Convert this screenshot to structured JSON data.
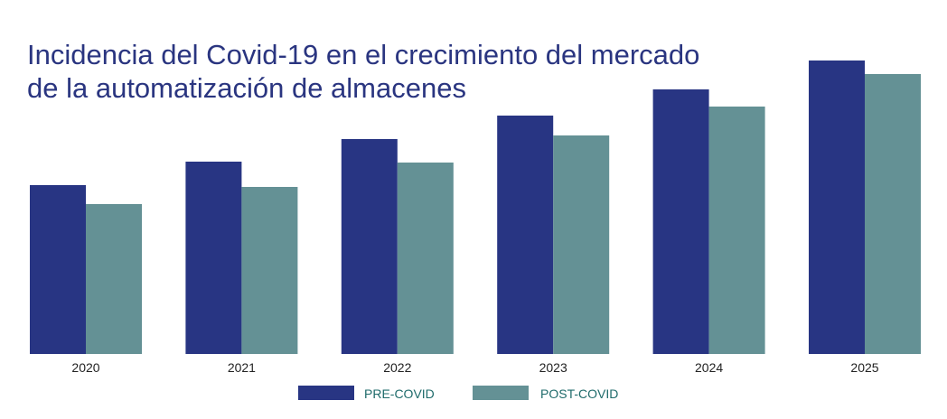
{
  "title_lines": [
    "Incidencia del Covid-19 en el crecimiento del mercado",
    "de la automatización de almacenes"
  ],
  "colors": {
    "pre_covid": "#283583",
    "post_covid": "#649195",
    "title": "#2a3580",
    "legend_text": "#1f6b6b"
  },
  "chart_data": {
    "type": "bar",
    "categories": [
      "2020",
      "2021",
      "2022",
      "2023",
      "2024",
      "2025"
    ],
    "series": [
      {
        "name": "PRE-COVID",
        "values": [
          187,
          213,
          238,
          264,
          293,
          325
        ]
      },
      {
        "name": "POST-COVID",
        "values": [
          166,
          185,
          212,
          242,
          274,
          310
        ]
      }
    ],
    "ylim": [
      0,
      340
    ],
    "grid": false,
    "legend": "bottom"
  }
}
